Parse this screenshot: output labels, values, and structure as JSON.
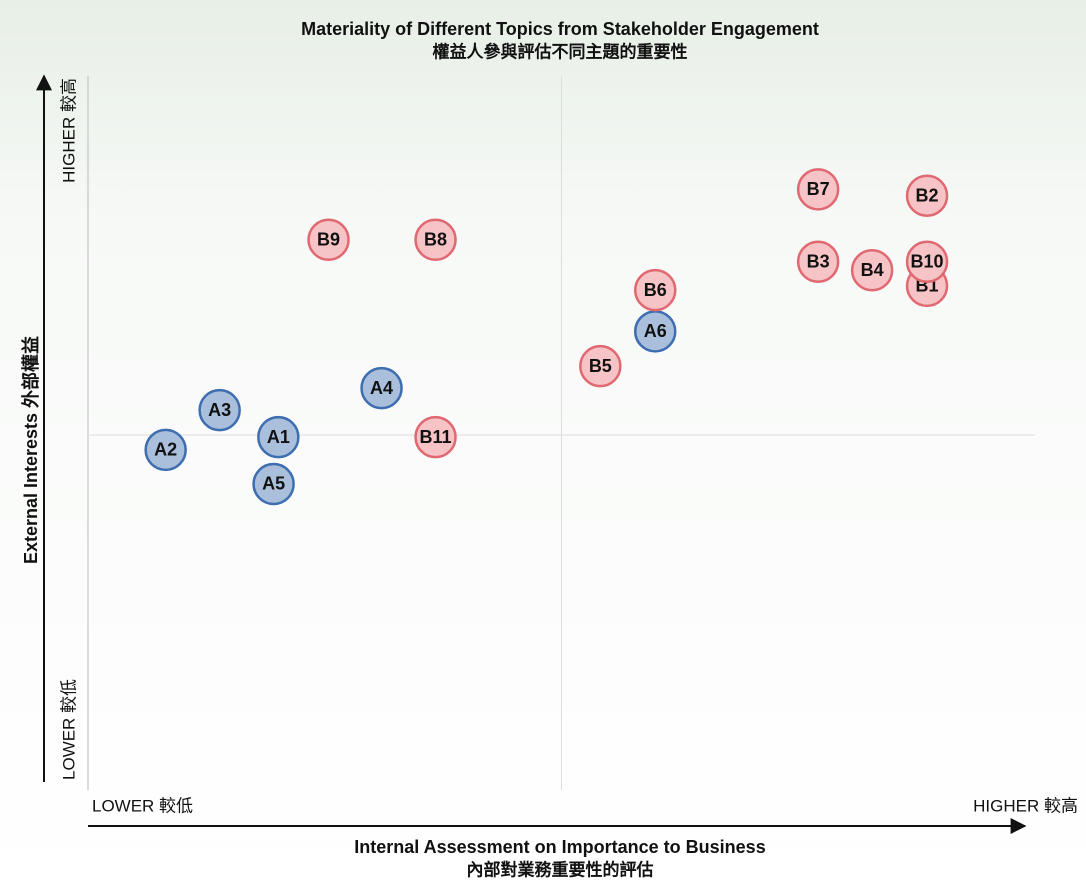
{
  "chart_data": {
    "type": "scatter",
    "title": "Materiality of Different Topics from Stakeholder Engagement",
    "subtitle": "權益人參與評估不同主題的重要性",
    "x_label": "Internal Assessment on Importance to Business",
    "x_label_sub": "內部對業務重要性的評估",
    "y_label": "External Interests 外部權益",
    "x_low": "LOWER 較低",
    "x_high": "HIGHER 較高",
    "y_low": "LOWER 較低",
    "y_high": "HIGHER 較高",
    "xlim": [
      0,
      100
    ],
    "ylim": [
      0,
      100
    ],
    "series": [
      {
        "color": "#a9bfdc",
        "edge": "#3e6db0",
        "labels": [
          "A1",
          "A2",
          "A3",
          "A4",
          "A5",
          "A6"
        ],
        "x": [
          20.1,
          8.2,
          13.9,
          31.0,
          19.6,
          59.9
        ],
        "values": [
          49.7,
          47.9,
          53.5,
          56.6,
          43.1,
          64.6
        ]
      },
      {
        "color": "#f6c3c6",
        "edge": "#e06871",
        "labels": [
          "B1",
          "B2",
          "B3",
          "B4",
          "B5",
          "B6",
          "B7",
          "B8",
          "B9",
          "B10",
          "B11"
        ],
        "x": [
          88.6,
          88.6,
          77.1,
          82.8,
          54.1,
          59.9,
          77.1,
          36.7,
          25.4,
          88.6,
          36.7
        ],
        "values": [
          71.0,
          83.7,
          74.4,
          73.2,
          59.7,
          70.4,
          84.6,
          77.5,
          77.5,
          74.4,
          49.7
        ]
      }
    ]
  }
}
